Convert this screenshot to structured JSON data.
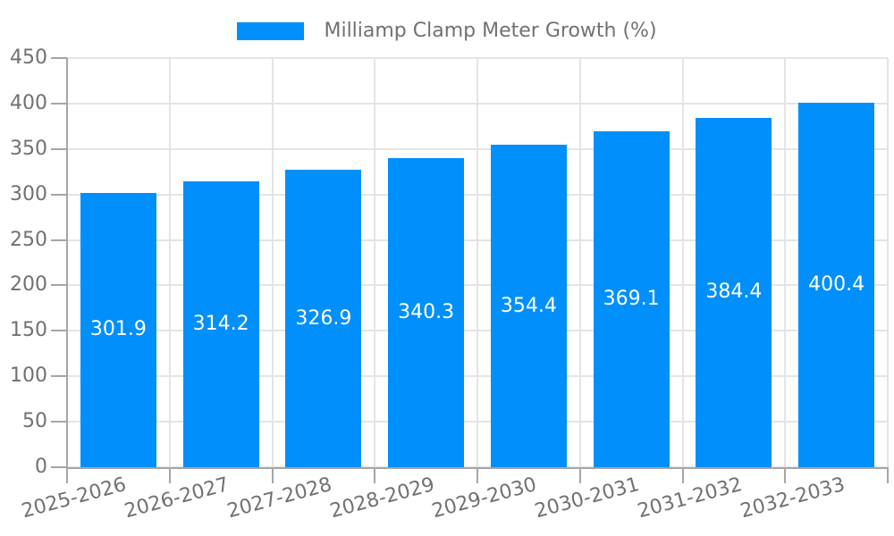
{
  "chart_data": {
    "type": "bar",
    "title": "",
    "xlabel": "",
    "ylabel": "",
    "legend": {
      "label": "Milliamp Clamp Meter Growth (%)",
      "position": "top"
    },
    "categories": [
      "2025-2026",
      "2026-2027",
      "2027-2028",
      "2028-2029",
      "2029-2030",
      "2030-2031",
      "2031-2032",
      "2032-2033"
    ],
    "values": [
      301.9,
      314.2,
      326.9,
      340.3,
      354.4,
      369.1,
      384.4,
      400.4
    ],
    "ylim": [
      0,
      450
    ],
    "yticks": [
      0,
      50,
      100,
      150,
      200,
      250,
      300,
      350,
      400,
      450
    ],
    "grid": true,
    "legend_position": "top center",
    "x_label_rotation_deg": -15,
    "colors": {
      "bar": "#008FFB",
      "value_label": "#FFFFFF",
      "axis_label": "#717171",
      "legend_text": "#717171",
      "grid_line": "#E4E4E4",
      "axis_line": "#A6A6A6",
      "background": "#FFFFFF"
    }
  }
}
